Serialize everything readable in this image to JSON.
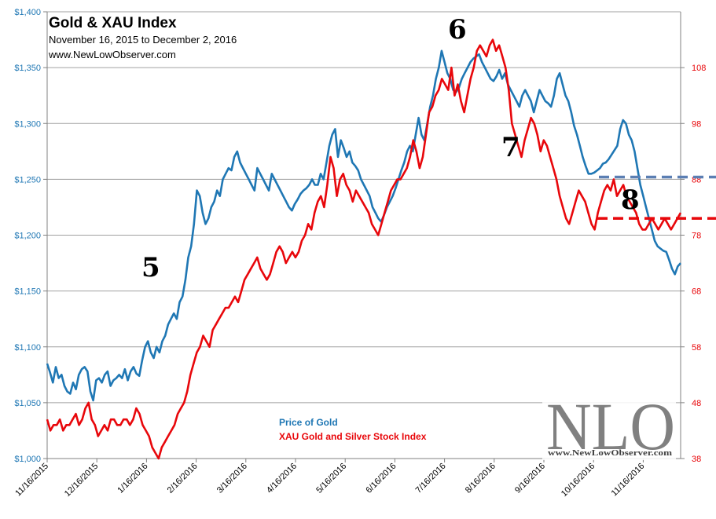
{
  "title": "Gold  & XAU Index",
  "subtitle": "November 16, 2015  to December 2, 2016",
  "website": "www.NewLowObserver.com",
  "logo": {
    "text": "NLO",
    "url": "www.NewLowObserver.com"
  },
  "annotations": [
    "5",
    "6",
    "7",
    "8"
  ],
  "colors": {
    "gold": "#1f77b4",
    "xau": "#e8070b",
    "grid": "#a0a0a0",
    "axis": "#808080"
  },
  "chart_data": {
    "type": "line",
    "title": "Gold  & XAU Index",
    "x_ticks": [
      "11/16/2015",
      "12/16/2015",
      "1/16/2016",
      "2/16/2016",
      "3/16/2016",
      "4/16/2016",
      "5/16/2016",
      "6/16/2016",
      "7/16/2016",
      "8/16/2016",
      "9/16/2016",
      "10/16/2016",
      "11/16/2016"
    ],
    "y_left": {
      "ticks": [
        "$1,000",
        "$1,050",
        "$1,100",
        "$1,150",
        "$1,200",
        "$1,250",
        "$1,300",
        "$1,350",
        "$1,400"
      ],
      "range": [
        1000,
        1400
      ]
    },
    "y_right": {
      "ticks": [
        "38",
        "48",
        "58",
        "68",
        "78",
        "88",
        "98",
        "108"
      ],
      "range": [
        38,
        118
      ]
    },
    "series": [
      {
        "name": "Price of Gold",
        "axis": "left",
        "values": [
          1085,
          1077,
          1068,
          1082,
          1072,
          1075,
          1065,
          1060,
          1058,
          1068,
          1062,
          1075,
          1080,
          1082,
          1078,
          1060,
          1052,
          1070,
          1072,
          1068,
          1075,
          1078,
          1065,
          1070,
          1072,
          1075,
          1072,
          1080,
          1070,
          1078,
          1082,
          1076,
          1074,
          1088,
          1100,
          1105,
          1095,
          1090,
          1100,
          1095,
          1105,
          1110,
          1120,
          1125,
          1130,
          1125,
          1140,
          1145,
          1160,
          1180,
          1190,
          1210,
          1240,
          1235,
          1220,
          1210,
          1215,
          1225,
          1230,
          1240,
          1235,
          1250,
          1255,
          1260,
          1258,
          1270,
          1275,
          1265,
          1260,
          1255,
          1250,
          1245,
          1240,
          1260,
          1255,
          1250,
          1245,
          1240,
          1255,
          1250,
          1245,
          1240,
          1235,
          1230,
          1225,
          1222,
          1228,
          1232,
          1237,
          1240,
          1242,
          1245,
          1250,
          1245,
          1245,
          1255,
          1250,
          1265,
          1280,
          1290,
          1295,
          1270,
          1285,
          1278,
          1270,
          1275,
          1265,
          1262,
          1258,
          1250,
          1245,
          1240,
          1235,
          1225,
          1220,
          1215,
          1212,
          1218,
          1225,
          1230,
          1235,
          1242,
          1250,
          1258,
          1265,
          1275,
          1280,
          1275,
          1290,
          1305,
          1290,
          1285,
          1300,
          1315,
          1325,
          1340,
          1350,
          1365,
          1355,
          1345,
          1340,
          1330,
          1328,
          1332,
          1340,
          1345,
          1350,
          1355,
          1358,
          1360,
          1362,
          1355,
          1350,
          1345,
          1340,
          1338,
          1342,
          1348,
          1340,
          1345,
          1335,
          1330,
          1325,
          1320,
          1315,
          1325,
          1330,
          1325,
          1320,
          1310,
          1320,
          1330,
          1325,
          1320,
          1318,
          1315,
          1325,
          1340,
          1345,
          1335,
          1325,
          1320,
          1310,
          1298,
          1290,
          1280,
          1270,
          1262,
          1255,
          1255,
          1256,
          1258,
          1260,
          1264,
          1265,
          1268,
          1272,
          1276,
          1280,
          1295,
          1303,
          1300,
          1290,
          1285,
          1275,
          1260,
          1245,
          1235,
          1225,
          1215,
          1205,
          1195,
          1190,
          1188,
          1186,
          1185,
          1178,
          1170,
          1165,
          1172,
          1175
        ],
        "start": "11/16/2015",
        "end": "12/2/2016"
      },
      {
        "name": "XAU Gold and Silver Stock Index",
        "axis": "right",
        "values": [
          45,
          43,
          44,
          44,
          45,
          43,
          44,
          44,
          45,
          46,
          44,
          45,
          47,
          48,
          45,
          44,
          42,
          43,
          44,
          43,
          45,
          45,
          44,
          44,
          45,
          45,
          44,
          45,
          47,
          46,
          44,
          43,
          42,
          40,
          39,
          38,
          40,
          41,
          42,
          43,
          44,
          46,
          47,
          48,
          50,
          53,
          55,
          57,
          58,
          60,
          59,
          58,
          61,
          62,
          63,
          64,
          65,
          65,
          66,
          67,
          66,
          68,
          70,
          71,
          72,
          73,
          74,
          72,
          71,
          70,
          71,
          73,
          75,
          76,
          75,
          73,
          74,
          75,
          74,
          75,
          77,
          78,
          80,
          79,
          82,
          84,
          85,
          83,
          87,
          92,
          90,
          85,
          88,
          89,
          87,
          86,
          84,
          86,
          85,
          84,
          83,
          82,
          80,
          79,
          78,
          80,
          82,
          84,
          86,
          87,
          88,
          88,
          89,
          90,
          92,
          95,
          93,
          90,
          92,
          96,
          100,
          101,
          103,
          104,
          106,
          105,
          104,
          108,
          103,
          105,
          102,
          100,
          103,
          106,
          108,
          111,
          112,
          111,
          110,
          112,
          113,
          111,
          112,
          110,
          108,
          104,
          98,
          96,
          94,
          92,
          95,
          97,
          99,
          98,
          96,
          93,
          95,
          94,
          92,
          90,
          88,
          85,
          83,
          81,
          80,
          82,
          84,
          86,
          85,
          84,
          82,
          80,
          79,
          82,
          84,
          86,
          87,
          86,
          88,
          85,
          86,
          87,
          85,
          84,
          83,
          82,
          80,
          79,
          79,
          80,
          81,
          80,
          79,
          80,
          81,
          80,
          79,
          80,
          81,
          82
        ],
        "start": "11/16/2015",
        "end": "12/2/2016"
      }
    ],
    "legend": [
      "Price of Gold",
      "XAU Gold and Silver Stock Index"
    ],
    "reference_lines": [
      {
        "series": "Price of Gold",
        "value": 1252,
        "style": "dashed"
      },
      {
        "series": "XAU Gold and Silver Stock Index",
        "value": 81,
        "style": "dashed"
      }
    ]
  }
}
